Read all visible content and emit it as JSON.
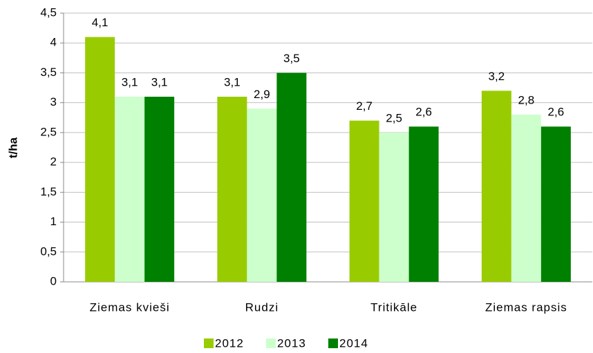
{
  "chart_data": {
    "type": "bar",
    "categories": [
      "Ziemas kvieši",
      "Rudzi",
      "Tritikāle",
      "Ziemas rapsis"
    ],
    "y_axis_label": "t/ha",
    "series": [
      {
        "name": "2012",
        "color": "#99cc00",
        "values": [
          4.1,
          3.1,
          2.7,
          3.2
        ],
        "value_labels": [
          "4,1",
          "3,1",
          "2,7",
          "3,2"
        ]
      },
      {
        "name": "2013",
        "color": "#ccffcc",
        "values": [
          3.1,
          2.9,
          2.5,
          2.8
        ],
        "value_labels": [
          "3,1",
          "2,9",
          "2,5",
          "2,8"
        ]
      },
      {
        "name": "2014",
        "color": "#008000",
        "values": [
          3.1,
          3.5,
          2.6,
          2.6
        ],
        "value_labels": [
          "3,1",
          "3,5",
          "2,6",
          "2,6"
        ]
      }
    ],
    "ylim": [
      0,
      4.5
    ],
    "yticks": [
      0,
      {
        "value": 0.5,
        "label": "0,5"
      },
      1,
      {
        "value": 1.5,
        "label": "1,5"
      },
      2,
      {
        "value": 2.5,
        "label": "2,5"
      },
      3,
      {
        "value": 3.5,
        "label": "3,5"
      },
      4,
      {
        "value": 4.5,
        "label": "4,5"
      }
    ],
    "grid": true,
    "legend": "bottom"
  }
}
